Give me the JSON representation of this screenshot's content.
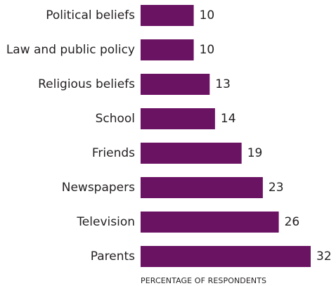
{
  "chart_data": {
    "type": "bar",
    "orientation": "horizontal",
    "categories": [
      "Political beliefs",
      "Law and public policy",
      "Religious beliefs",
      "School",
      "Friends",
      "Newspapers",
      "Television",
      "Parents"
    ],
    "values": [
      10,
      10,
      13,
      14,
      19,
      23,
      26,
      32
    ],
    "title": "",
    "xlabel": "PERCENTAGE OF RESPONDENTS",
    "ylabel": "",
    "xlim": [
      0,
      32
    ],
    "grid": false,
    "bar_color": "#6b1363",
    "show_value_labels": true
  }
}
